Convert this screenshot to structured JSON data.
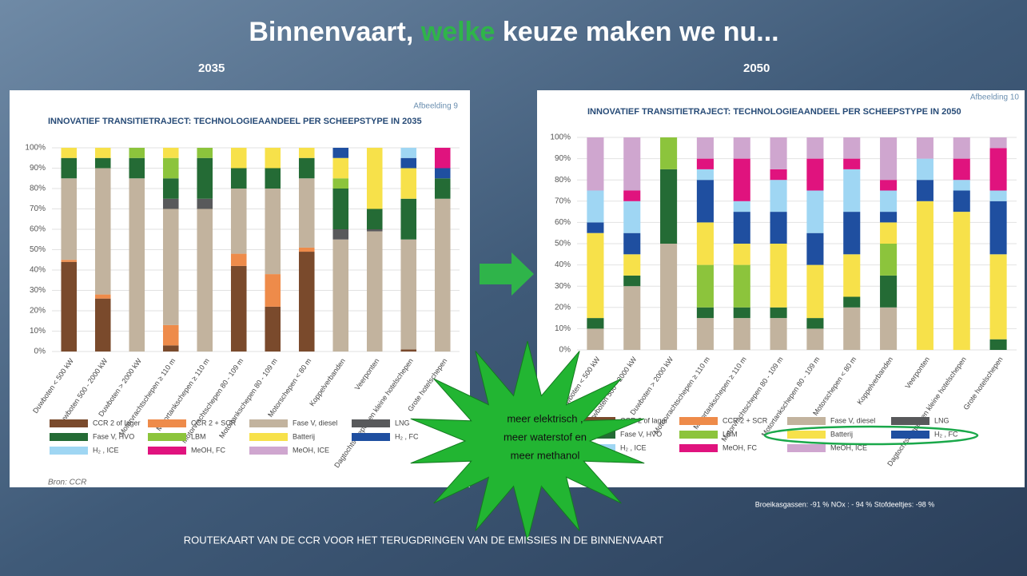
{
  "title_parts": [
    "Binnenvaart, ",
    "welke",
    " keuze maken we nu..."
  ],
  "labels": [
    "2035",
    "2050"
  ],
  "burst_lines": [
    "meer elektrisch ,",
    "meer waterstof en",
    "meer methanol"
  ],
  "footer": "ROUTEKAART VAN DE CCR VOOR HET TERUGDRINGEN VAN DE EMISSIES IN DE BINNENVAART",
  "note": "Broeikasgassen:  -91 % NOx : - 94 % Stofdeeltjes:  -98 %",
  "chart_data": [
    {
      "type": "stacked_bar",
      "figure": "Afbeelding 9",
      "title": "INNOVATIEF TRANSITIETRAJECT: TECHNOLOGIEAANDEEL PER SCHEEPSTYPE IN 2035",
      "source": "Bron: CCR",
      "categories": [
        "Duwboten < 500 kW",
        "Duwboten 500 - 2000 kW",
        "Duwboten > 2000 kW",
        "Motorvrachtschepen ≥ 110 m",
        "Motortankschepen ≥ 110 m",
        "Motorvrachtschepen 80 - 109 m",
        "Motortankschepen 80 - 109 m",
        "Motorschepen < 80 m",
        "Koppelverbanden",
        "Veerponten",
        "Dagtochtschepen en kleine hotelschepen",
        "Grote hotelschepen"
      ],
      "ylim": [
        0,
        100
      ],
      "yticks": [
        {
          "value": 0,
          "label": "0%"
        },
        {
          "value": 10,
          "label": "10%"
        },
        {
          "value": 20,
          "label": "20%"
        },
        {
          "value": 30,
          "label": "30%"
        },
        {
          "value": 40,
          "label": "40%"
        },
        {
          "value": 50,
          "label": "50%"
        },
        {
          "value": 60,
          "label": "60%"
        },
        {
          "value": 70,
          "label": "70%"
        },
        {
          "value": 80,
          "label": "80%"
        },
        {
          "value": 90,
          "label": "90%"
        },
        {
          "value": 100,
          "label": "100%"
        }
      ],
      "grid": true,
      "series": [
        {
          "name": "CCR 2 of lager",
          "color": "#7a4a2c",
          "values": [
            44,
            26,
            0,
            3,
            0,
            42,
            22,
            49,
            0,
            0,
            1,
            0
          ]
        },
        {
          "name": "CCR 2 + SCR",
          "color": "#ee8b4a",
          "values": [
            1,
            2,
            0,
            10,
            0,
            6,
            16,
            2,
            0,
            0,
            0,
            0
          ]
        },
        {
          "name": "Fase V, diesel",
          "color": "#c2b39e",
          "values": [
            40,
            62,
            85,
            57,
            70,
            32,
            42,
            34,
            55,
            59,
            54,
            75
          ]
        },
        {
          "name": "LNG",
          "color": "#58595b",
          "values": [
            0,
            0,
            0,
            5,
            5,
            0,
            0,
            0,
            5,
            1,
            0,
            0
          ]
        },
        {
          "name": "Fase V, HVO",
          "color": "#246b35",
          "values": [
            10,
            5,
            10,
            10,
            20,
            10,
            10,
            10,
            20,
            10,
            20,
            10
          ]
        },
        {
          "name": "LBM",
          "color": "#8cc43c",
          "values": [
            0,
            0,
            5,
            10,
            5,
            0,
            0,
            0,
            5,
            0,
            0,
            0
          ]
        },
        {
          "name": "Batterij",
          "color": "#f7e14a",
          "values": [
            5,
            5,
            0,
            5,
            0,
            10,
            10,
            5,
            10,
            30,
            15,
            0
          ]
        },
        {
          "name": "H₂ , FC",
          "color": "#1f4fa0",
          "values": [
            0,
            0,
            0,
            0,
            0,
            0,
            0,
            0,
            5,
            0,
            5,
            5
          ]
        },
        {
          "name": "H₂ , ICE",
          "color": "#9fd6f3",
          "values": [
            0,
            0,
            0,
            0,
            0,
            0,
            0,
            0,
            0,
            0,
            5,
            0
          ]
        },
        {
          "name": "MeOH, FC",
          "color": "#e0137e",
          "values": [
            0,
            0,
            0,
            0,
            0,
            0,
            0,
            0,
            0,
            0,
            0,
            10
          ]
        },
        {
          "name": "MeOH, ICE",
          "color": "#cfa6cf",
          "values": [
            0,
            0,
            0,
            0,
            0,
            0,
            0,
            0,
            0,
            0,
            0,
            0
          ]
        }
      ]
    },
    {
      "type": "stacked_bar",
      "figure": "Afbeelding 10",
      "title": "INNOVATIEF TRANSITIETRAJECT: TECHNOLOGIEAANDEEL PER SCHEEPSTYPE IN 2050",
      "categories": [
        "Duwboten < 500 kW",
        "Duwboten 500 - 2000 kW",
        "Duwboten > 2000 kW",
        "Motorvrachtschepen ≥ 110 m",
        "Motortankschepen ≥ 110 m",
        "Motorvrachtschepen 80 - 109 m",
        "Motortankschepen 80 - 109 m",
        "Motorschepen < 80 m",
        "Koppelverbanden",
        "Veerponten",
        "Dagtochtschepen en kleine hotelschepen",
        "Grote hotelschepen"
      ],
      "ylim": [
        0,
        100
      ],
      "yticks": [
        {
          "value": 0,
          "label": "0%"
        },
        {
          "value": 10,
          "label": "10%"
        },
        {
          "value": 20,
          "label": "20%"
        },
        {
          "value": 30,
          "label": "30%"
        },
        {
          "value": 40,
          "label": "40%"
        },
        {
          "value": 50,
          "label": "50%"
        },
        {
          "value": 60,
          "label": "60%"
        },
        {
          "value": 70,
          "label": "70%"
        },
        {
          "value": 80,
          "label": "80%"
        },
        {
          "value": 90,
          "label": "90%"
        },
        {
          "value": 100,
          "label": "100%"
        }
      ],
      "grid": true,
      "series": [
        {
          "name": "CCR 2 of lager",
          "color": "#7a4a2c",
          "values": [
            0,
            0,
            0,
            0,
            0,
            0,
            0,
            0,
            0,
            0,
            0,
            0
          ]
        },
        {
          "name": "CCR 2 + SCR",
          "color": "#ee8b4a",
          "values": [
            0,
            0,
            0,
            0,
            0,
            0,
            0,
            0,
            0,
            0,
            0,
            0
          ]
        },
        {
          "name": "Fase V, diesel",
          "color": "#c2b39e",
          "values": [
            10,
            30,
            50,
            15,
            15,
            15,
            10,
            20,
            20,
            0,
            0,
            0
          ]
        },
        {
          "name": "LNG",
          "color": "#58595b",
          "values": [
            0,
            0,
            0,
            0,
            0,
            0,
            0,
            0,
            0,
            0,
            0,
            0
          ]
        },
        {
          "name": "Fase V, HVO",
          "color": "#246b35",
          "values": [
            5,
            5,
            35,
            5,
            5,
            5,
            5,
            5,
            15,
            0,
            0,
            5
          ]
        },
        {
          "name": "LBM",
          "color": "#8cc43c",
          "values": [
            0,
            0,
            15,
            20,
            20,
            0,
            0,
            0,
            15,
            0,
            0,
            0
          ]
        },
        {
          "name": "Batterij",
          "color": "#f7e14a",
          "values": [
            40,
            10,
            0,
            20,
            10,
            30,
            25,
            20,
            10,
            70,
            65,
            40
          ]
        },
        {
          "name": "H₂ , FC",
          "color": "#1f4fa0",
          "values": [
            5,
            10,
            0,
            20,
            15,
            15,
            15,
            20,
            5,
            10,
            10,
            25
          ]
        },
        {
          "name": "H₂ , ICE",
          "color": "#9fd6f3",
          "values": [
            15,
            15,
            0,
            5,
            5,
            15,
            20,
            20,
            10,
            10,
            5,
            5
          ]
        },
        {
          "name": "MeOH, FC",
          "color": "#e0137e",
          "values": [
            0,
            5,
            0,
            5,
            20,
            5,
            15,
            5,
            5,
            0,
            10,
            20
          ]
        },
        {
          "name": "MeOH, ICE",
          "color": "#cfa6cf",
          "values": [
            25,
            25,
            0,
            10,
            10,
            15,
            10,
            10,
            20,
            10,
            10,
            5
          ]
        }
      ]
    }
  ]
}
